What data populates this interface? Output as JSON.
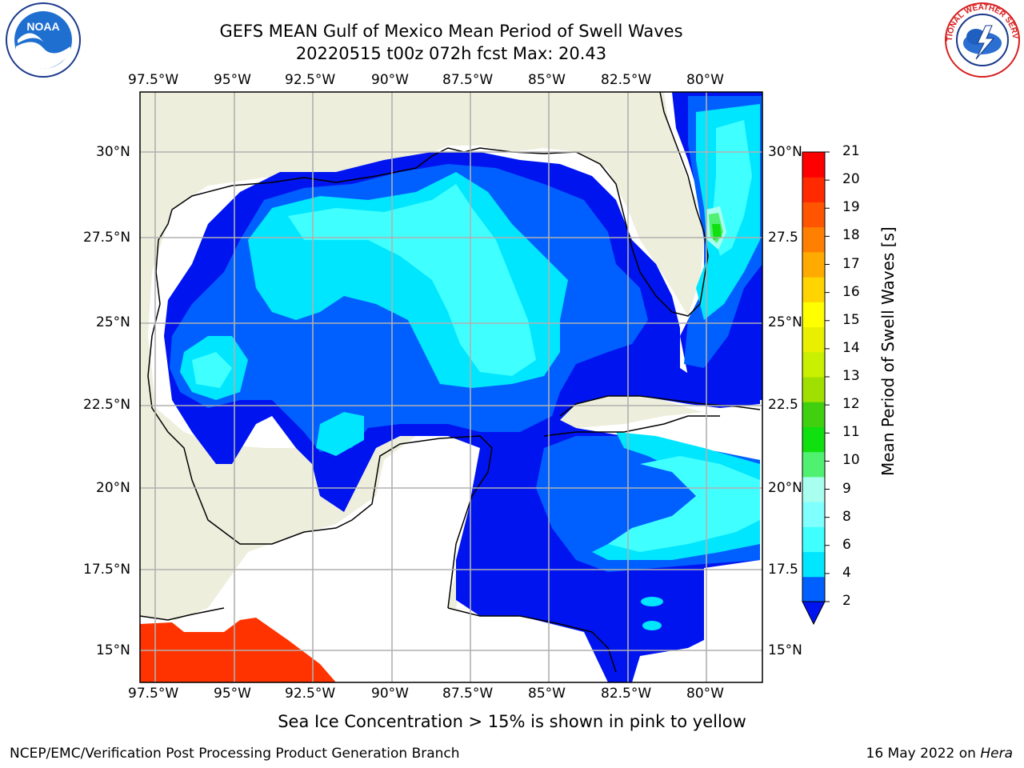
{
  "title": {
    "line1": "GEFS MEAN Gulf of Mexico Mean Period of Swell Waves",
    "line2": "20220515 t00z 072h fcst   Max: 20.43"
  },
  "map": {
    "lon_ticks": [
      "97.5°W",
      "95°W",
      "92.5°W",
      "90°W",
      "87.5°W",
      "85°W",
      "82.5°W",
      "80°W"
    ],
    "lat_ticks_left": [
      "30°N",
      "27.5°N",
      "25°N",
      "22.5°N",
      "20°N",
      "17.5°N",
      "15°N"
    ],
    "lat_ticks_right": [
      "30°N",
      "27.5",
      "25°N",
      "22.5",
      "20°N",
      "17.5",
      "15°N"
    ],
    "land_color": "#eeeedd",
    "grid_color": "#b0b0b0"
  },
  "colorbar": {
    "label": "Mean Period of Swell Waves [s]",
    "ticks": [
      "2",
      "4",
      "6",
      "8",
      "9",
      "10",
      "11",
      "12",
      "13",
      "14",
      "15",
      "16",
      "17",
      "18",
      "19",
      "20",
      "21"
    ],
    "colors": [
      "#0060ff",
      "#00e6ff",
      "#40ffff",
      "#80ffff",
      "#a8fff0",
      "#50f070",
      "#10e010",
      "#40d010",
      "#a0e000",
      "#c8f000",
      "#e8f000",
      "#ffff00",
      "#ffd400",
      "#ffaa00",
      "#ff8000",
      "#ff5500",
      "#ff2a00",
      "#ff0000"
    ],
    "extend_color": "#0014f0"
  },
  "legend_note": "Sea Ice Concentration > 15% is shown in pink to yellow",
  "footer": {
    "left": "NCEP/EMC/Verification Post Processing Product Generation Branch",
    "right_date": "16 May 2022 on ",
    "right_host": "Hera"
  },
  "logos": {
    "noaa_text": "NOAA",
    "nws_text": "NATIONAL WEATHER SERVICE"
  }
}
